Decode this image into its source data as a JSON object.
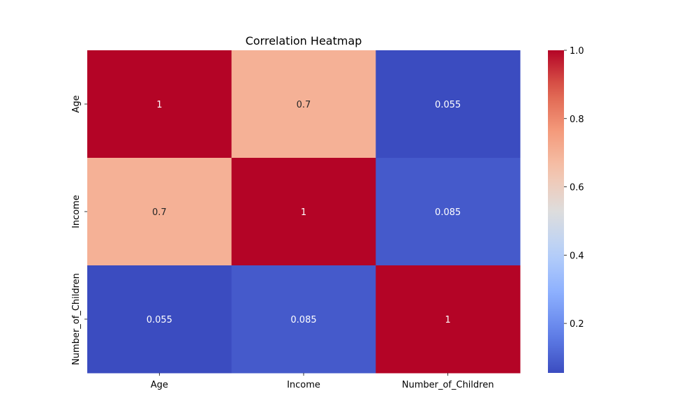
{
  "chart_data": {
    "type": "heatmap",
    "title": "Correlation Heatmap",
    "x_categories": [
      "Age",
      "Income",
      "Number_of_Children"
    ],
    "y_categories": [
      "Age",
      "Income",
      "Number_of_Children"
    ],
    "values": [
      [
        1.0,
        0.7,
        0.055
      ],
      [
        0.7,
        1.0,
        0.085
      ],
      [
        0.055,
        0.085,
        1.0
      ]
    ],
    "cell_labels": [
      [
        "1",
        "0.7",
        "0.055"
      ],
      [
        "0.7",
        "1",
        "0.085"
      ],
      [
        "0.055",
        "0.085",
        "1"
      ]
    ],
    "colormap": "coolwarm",
    "colorbar": {
      "range": [
        0.055,
        1.0
      ],
      "ticks": [
        0.2,
        0.4,
        0.6,
        0.8,
        1.0
      ],
      "tick_labels": [
        "0.2",
        "0.4",
        "0.6",
        "0.8",
        "1.0"
      ]
    },
    "xlabel": "",
    "ylabel": ""
  }
}
